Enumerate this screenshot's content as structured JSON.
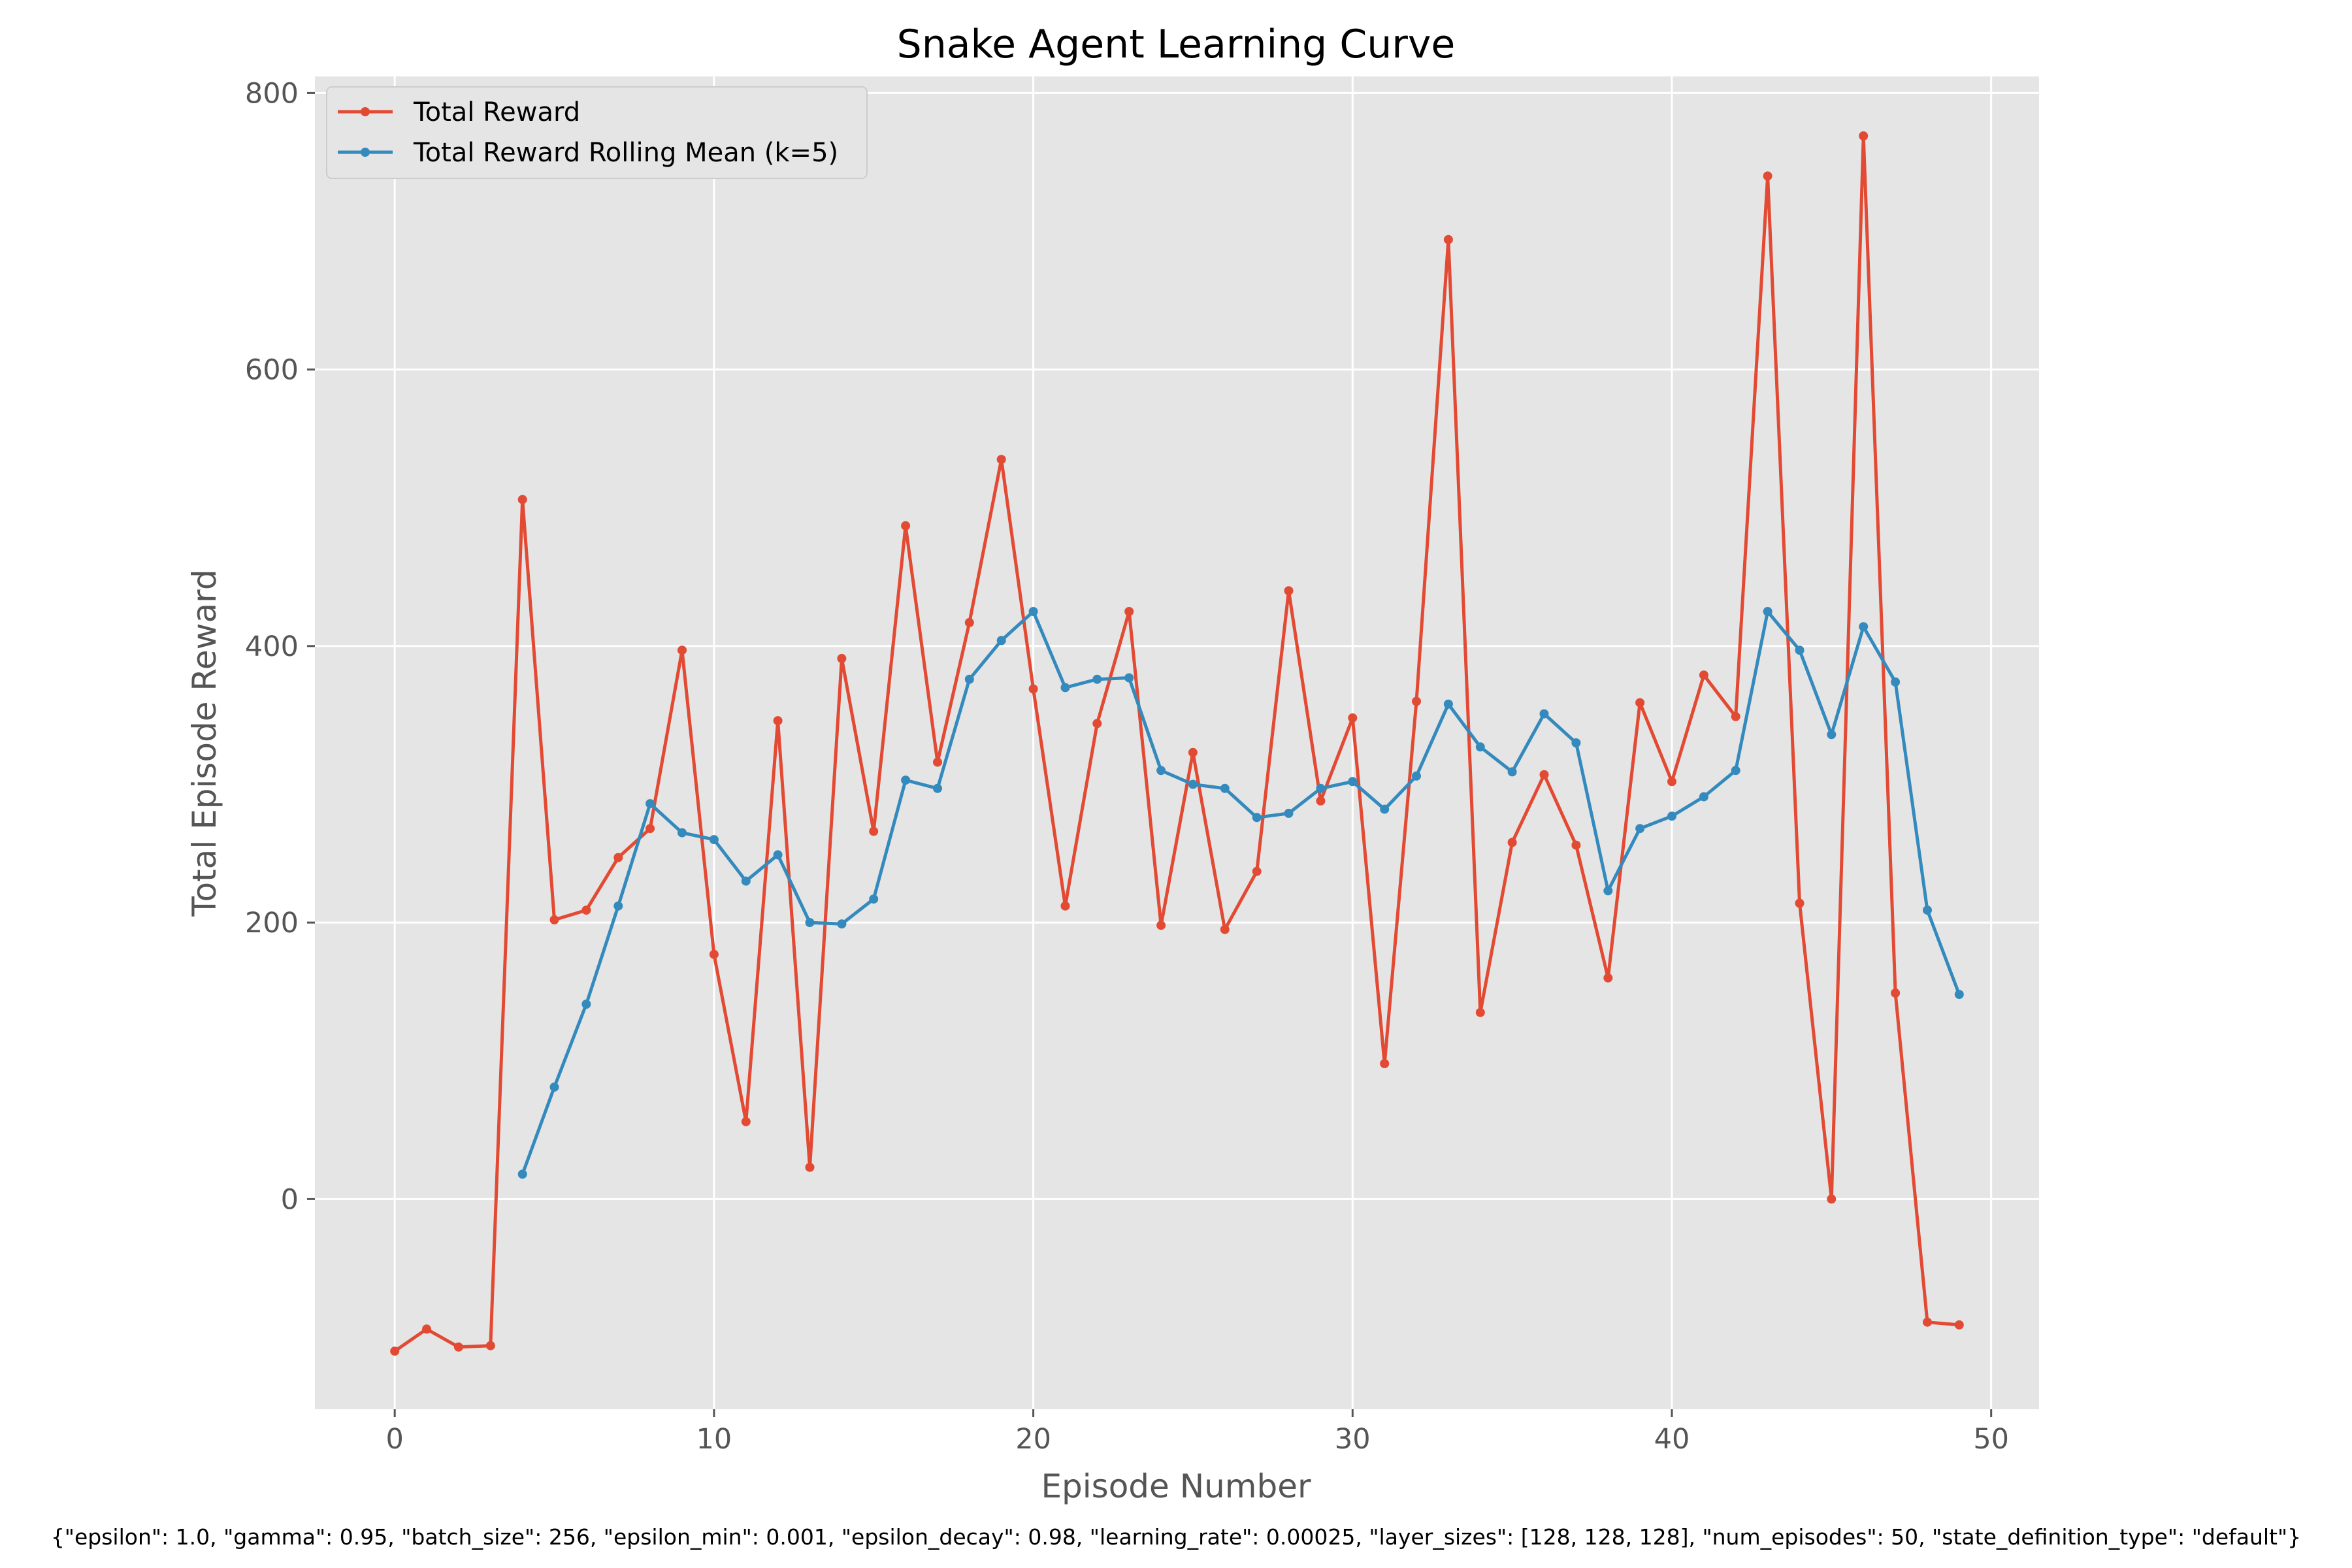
{
  "chart_data": {
    "type": "line",
    "title": "Snake Agent Learning Curve",
    "xlabel": "Episode Number",
    "ylabel": "Total Episode Reward",
    "xlim": [
      -2.5,
      51.5
    ],
    "ylim": [
      -152,
      812
    ],
    "xticks": [
      0,
      10,
      20,
      30,
      40,
      50
    ],
    "yticks": [
      0,
      200,
      400,
      600,
      800
    ],
    "grid": true,
    "legend_position": "top-left",
    "x": [
      0,
      1,
      2,
      3,
      4,
      5,
      6,
      7,
      8,
      9,
      10,
      11,
      12,
      13,
      14,
      15,
      16,
      17,
      18,
      19,
      20,
      21,
      22,
      23,
      24,
      25,
      26,
      27,
      28,
      29,
      30,
      31,
      32,
      33,
      34,
      35,
      36,
      37,
      38,
      39,
      40,
      41,
      42,
      43,
      44,
      45,
      46,
      47,
      48,
      49
    ],
    "series": [
      {
        "name": "Total Reward",
        "color": "#E24A33",
        "values": [
          -110,
          -94,
          -107,
          -106,
          506,
          202,
          209,
          247,
          268,
          397,
          177,
          56,
          346,
          23,
          391,
          266,
          487,
          316,
          417,
          535,
          369,
          212,
          344,
          425,
          198,
          323,
          195,
          237,
          440,
          288,
          348,
          98,
          360,
          694,
          135,
          258,
          307,
          256,
          160,
          359,
          302,
          379,
          349,
          740,
          214,
          0,
          769,
          149,
          -89,
          -91
        ]
      },
      {
        "name": "Total Reward Rolling Mean (k=5)",
        "color": "#348ABD",
        "values": [
          null,
          null,
          null,
          null,
          18,
          81,
          141,
          212,
          286,
          265,
          260,
          230,
          249,
          200,
          199,
          217,
          303,
          297,
          376,
          404,
          425,
          370,
          376,
          377,
          310,
          300,
          297,
          276,
          279,
          297,
          302,
          282,
          306,
          358,
          327,
          309,
          351,
          330,
          223,
          268,
          277,
          291,
          310,
          425,
          397,
          336,
          414,
          374,
          209,
          148
        ]
      }
    ],
    "annotation": "{\"epsilon\": 1.0, \"gamma\": 0.95, \"batch_size\": 256, \"epsilon_min\": 0.001, \"epsilon_decay\": 0.98, \"learning_rate\": 0.00025, \"layer_sizes\": [128, 128, 128], \"num_episodes\": 50, \"state_definition_type\": \"default\"}",
    "colors": {
      "plot_bg": "#E5E5E5",
      "grid": "#FFFFFF",
      "tick_text": "#555555"
    }
  }
}
